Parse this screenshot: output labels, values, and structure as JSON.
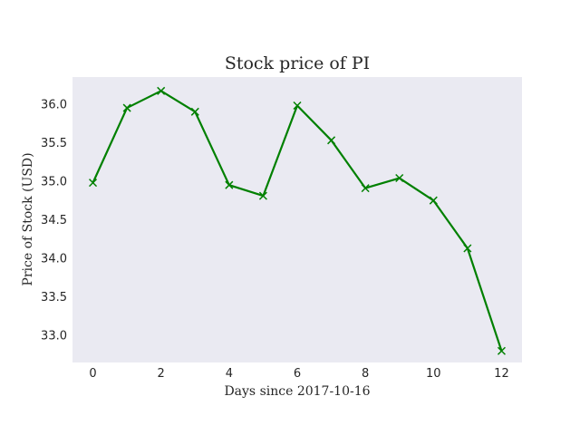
{
  "chart_data": {
    "type": "line",
    "title": "Stock price of PI",
    "xlabel": "Days since 2017-10-16",
    "ylabel": "Price of Stock (USD)",
    "xlim": [
      -0.6,
      12.6
    ],
    "ylim": [
      32.65,
      36.35
    ],
    "xticks": [
      0,
      2,
      4,
      6,
      8,
      10,
      12
    ],
    "xtick_labels": [
      "0",
      "2",
      "4",
      "6",
      "8",
      "10",
      "12"
    ],
    "yticks": [
      33.0,
      33.5,
      34.0,
      34.5,
      35.0,
      35.5,
      36.0
    ],
    "ytick_labels": [
      "33.0",
      "33.5",
      "34.0",
      "34.5",
      "35.0",
      "35.5",
      "36.0"
    ],
    "grid": false,
    "colors": {
      "background": "#eaeaf2",
      "line": "#008000"
    },
    "series": [
      {
        "marker": "x",
        "x": [
          0,
          1,
          2,
          3,
          4,
          5,
          6,
          7,
          8,
          9,
          10,
          11,
          12
        ],
        "y": [
          34.98,
          35.95,
          36.17,
          35.9,
          34.95,
          34.81,
          35.98,
          35.53,
          34.91,
          35.04,
          34.75,
          34.13,
          32.8
        ]
      }
    ]
  }
}
